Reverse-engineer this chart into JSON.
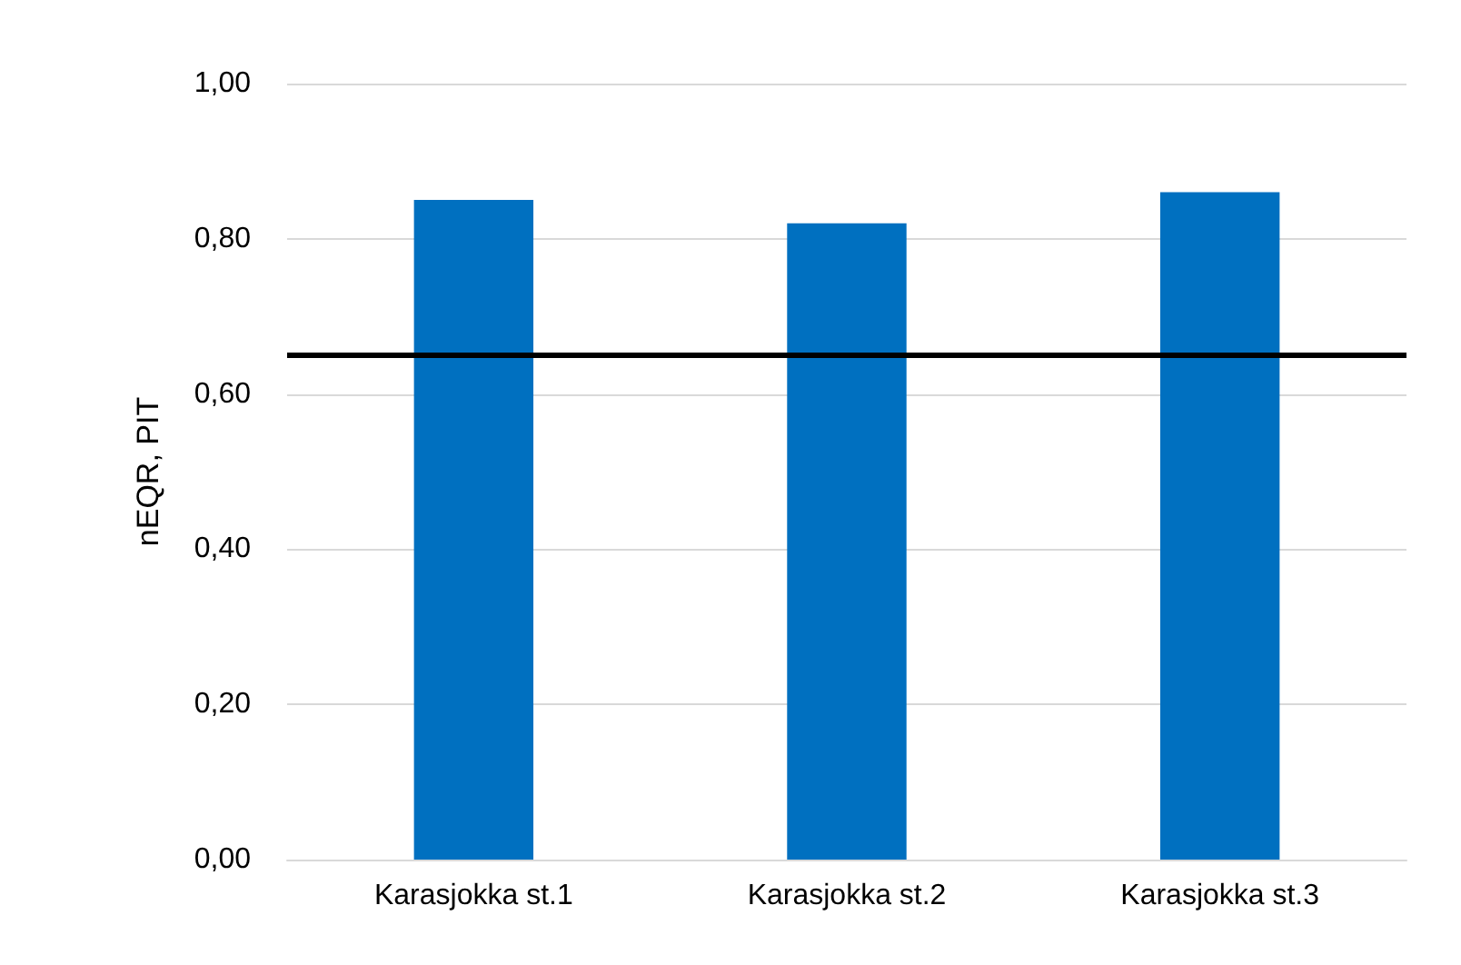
{
  "chart_data": {
    "type": "bar",
    "ylabel": "nEQR, PIT",
    "categories": [
      "Karasjokka st.1",
      "Karasjokka st.2",
      "Karasjokka st.3"
    ],
    "values": [
      0.85,
      0.82,
      0.86
    ],
    "color": "#0070c0",
    "ylim": [
      0,
      1
    ],
    "yticks": [
      {
        "value": 0,
        "label": "0,00"
      },
      {
        "value": 0.2,
        "label": "0,20"
      },
      {
        "value": 0.4,
        "label": "0,40"
      },
      {
        "value": 0.6,
        "label": "0,60"
      },
      {
        "value": 0.8,
        "label": "0,80"
      },
      {
        "value": 1,
        "label": "1,00"
      }
    ],
    "grid": "y",
    "ref_lines": [
      {
        "axis": "y",
        "value": 0.65,
        "color": "#000000"
      }
    ]
  }
}
